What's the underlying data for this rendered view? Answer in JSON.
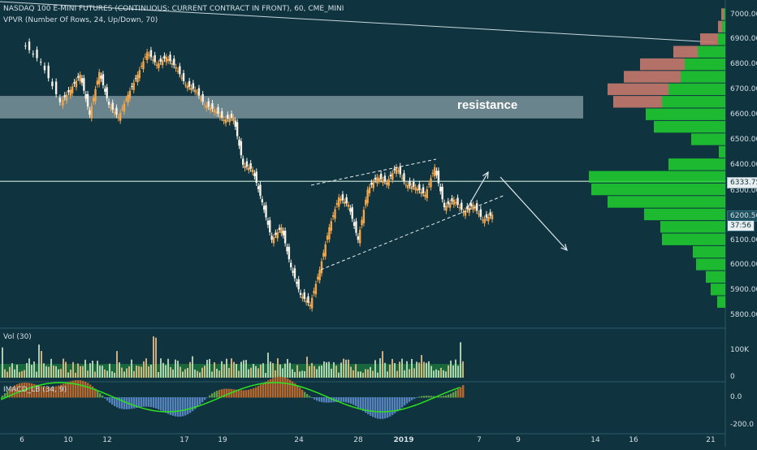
{
  "header": {
    "title": "NASDAQ 100 E-MINI FUTURES (CONTINUOUS: CURRENT CONTRACT IN FRONT), 60, CME_MINI",
    "indicator": "VPVR (Number Of Rows, 24, Up/Down, 70)"
  },
  "annotation": {
    "resistance_label": "resistance"
  },
  "price_axis": {
    "ticks": [
      "7000.00",
      "6900.00",
      "6800.00",
      "6700.00",
      "6600.00",
      "6500.00",
      "6400.00",
      "6300.00",
      "6100.00",
      "6000.00",
      "5900.00",
      "5800.00"
    ],
    "last_price": "6333.75",
    "current_price": "6200.50",
    "countdown": "37:56"
  },
  "volume_pane": {
    "label": "Vol (30)",
    "ticks": [
      "100K",
      "0"
    ]
  },
  "macd_pane": {
    "label": "IMACD_LB (34, 9)",
    "ticks": [
      "0.0",
      "-200.0"
    ]
  },
  "x_axis": {
    "ticks": [
      "6",
      "10",
      "12",
      "17",
      "19",
      "24",
      "28",
      "2019",
      "7",
      "9",
      "14",
      "16",
      "21"
    ]
  },
  "colors": {
    "background": "#0f3440",
    "candle_up": "#f2a54a",
    "candle_down": "#f7f2e8",
    "vp_up": "#1fd12f",
    "vp_down": "#c6786b",
    "resistance_zone": "#b7c6cc"
  },
  "chart_data": {
    "type": "candlestick",
    "price_range": [
      5775,
      7040
    ],
    "x_labels": [
      "6",
      "10",
      "12",
      "17",
      "19",
      "24",
      "28",
      "2019",
      "7",
      "9",
      "14",
      "16",
      "21"
    ],
    "price_path": [
      [
        6,
        6890
      ],
      [
        8,
        6810
      ],
      [
        10,
        6650
      ],
      [
        11,
        6700
      ],
      [
        12,
        6760
      ],
      [
        13,
        6600
      ],
      [
        14,
        6770
      ],
      [
        15,
        6640
      ],
      [
        16,
        6590
      ],
      [
        17,
        6680
      ],
      [
        18,
        6760
      ],
      [
        19,
        6850
      ],
      [
        20,
        6800
      ],
      [
        21,
        6830
      ],
      [
        22,
        6790
      ],
      [
        23,
        6720
      ],
      [
        24,
        6700
      ],
      [
        25,
        6640
      ],
      [
        26,
        6620
      ],
      [
        27,
        6580
      ],
      [
        28,
        6590
      ],
      [
        29,
        6400
      ],
      [
        30,
        6380
      ],
      [
        31,
        6250
      ],
      [
        32,
        6100
      ],
      [
        33,
        6150
      ],
      [
        34,
        5990
      ],
      [
        35,
        5880
      ],
      [
        36,
        5840
      ],
      [
        37,
        5980
      ],
      [
        38,
        6150
      ],
      [
        39,
        6270
      ],
      [
        40,
        6240
      ],
      [
        41,
        6100
      ],
      [
        42,
        6300
      ],
      [
        43,
        6350
      ],
      [
        44,
        6330
      ],
      [
        45,
        6390
      ],
      [
        46,
        6320
      ],
      [
        47,
        6310
      ],
      [
        48,
        6280
      ],
      [
        49,
        6390
      ],
      [
        50,
        6230
      ],
      [
        51,
        6260
      ],
      [
        52,
        6210
      ],
      [
        53,
        6240
      ],
      [
        54,
        6180
      ],
      [
        55,
        6200
      ]
    ],
    "resistance_zone": [
      6585,
      6675
    ],
    "horizontal_level": 6333.75,
    "volume_profile": [
      {
        "price": 7000,
        "up": 2,
        "down": 3
      },
      {
        "price": 6950,
        "up": 4,
        "down": 5
      },
      {
        "price": 6900,
        "up": 9,
        "down": 22
      },
      {
        "price": 6850,
        "up": 34,
        "down": 30
      },
      {
        "price": 6800,
        "up": 50,
        "down": 55
      },
      {
        "price": 6750,
        "up": 55,
        "down": 70
      },
      {
        "price": 6700,
        "up": 70,
        "down": 75
      },
      {
        "price": 6650,
        "up": 78,
        "down": 60
      },
      {
        "price": 6600,
        "up": 98,
        "down": 0
      },
      {
        "price": 6550,
        "up": 88,
        "down": 0
      },
      {
        "price": 6500,
        "up": 42,
        "down": 0
      },
      {
        "price": 6450,
        "up": 8,
        "down": 0
      },
      {
        "price": 6400,
        "up": 70,
        "down": 0
      },
      {
        "price": 6350,
        "up": 168,
        "down": 0
      },
      {
        "price": 6300,
        "up": 165,
        "down": 0
      },
      {
        "price": 6250,
        "up": 145,
        "down": 0
      },
      {
        "price": 6200,
        "up": 100,
        "down": 0
      },
      {
        "price": 6150,
        "up": 80,
        "down": 0
      },
      {
        "price": 6100,
        "up": 78,
        "down": 0
      },
      {
        "price": 6050,
        "up": 40,
        "down": 0
      },
      {
        "price": 6000,
        "up": 36,
        "down": 0
      },
      {
        "price": 5950,
        "up": 24,
        "down": 0
      },
      {
        "price": 5900,
        "up": 18,
        "down": 0
      },
      {
        "price": 5850,
        "up": 10,
        "down": 0
      }
    ]
  }
}
